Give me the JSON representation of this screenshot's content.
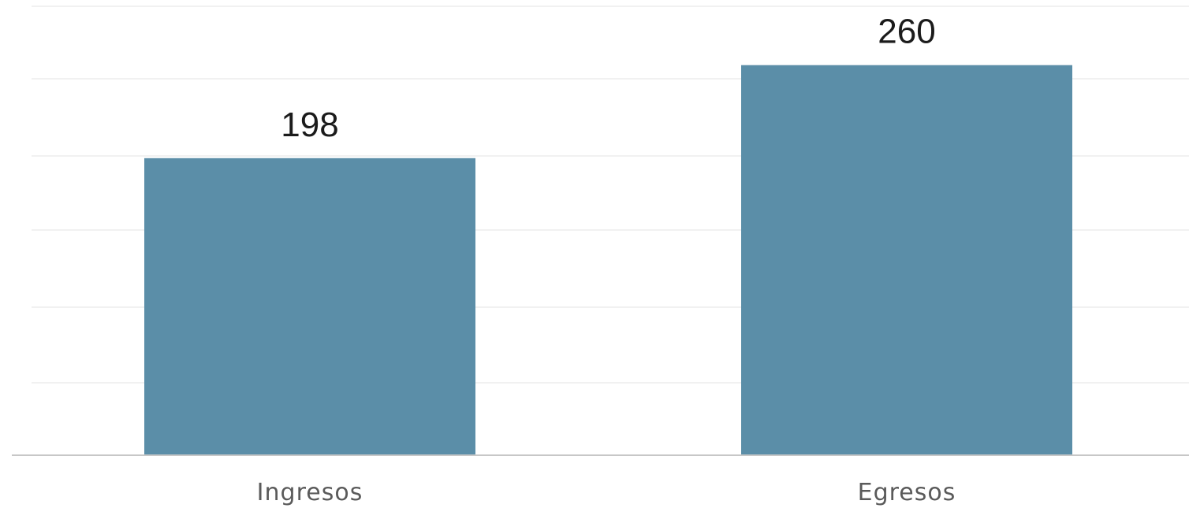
{
  "chart_data": {
    "type": "bar",
    "categories": [
      "Ingresos",
      "Egresos"
    ],
    "values": [
      198,
      260
    ],
    "data_labels": [
      "198",
      "260"
    ],
    "title": "",
    "xlabel": "",
    "ylabel": "",
    "ylim": [
      0,
      300
    ],
    "grid": true,
    "legend": "none"
  },
  "colors": {
    "bar": "#5b8ea8",
    "grid": "#f1f1f1",
    "axis": "#c7c7c7",
    "data_label": "#1b1b1b",
    "tick_label": "#5a5a5a"
  }
}
